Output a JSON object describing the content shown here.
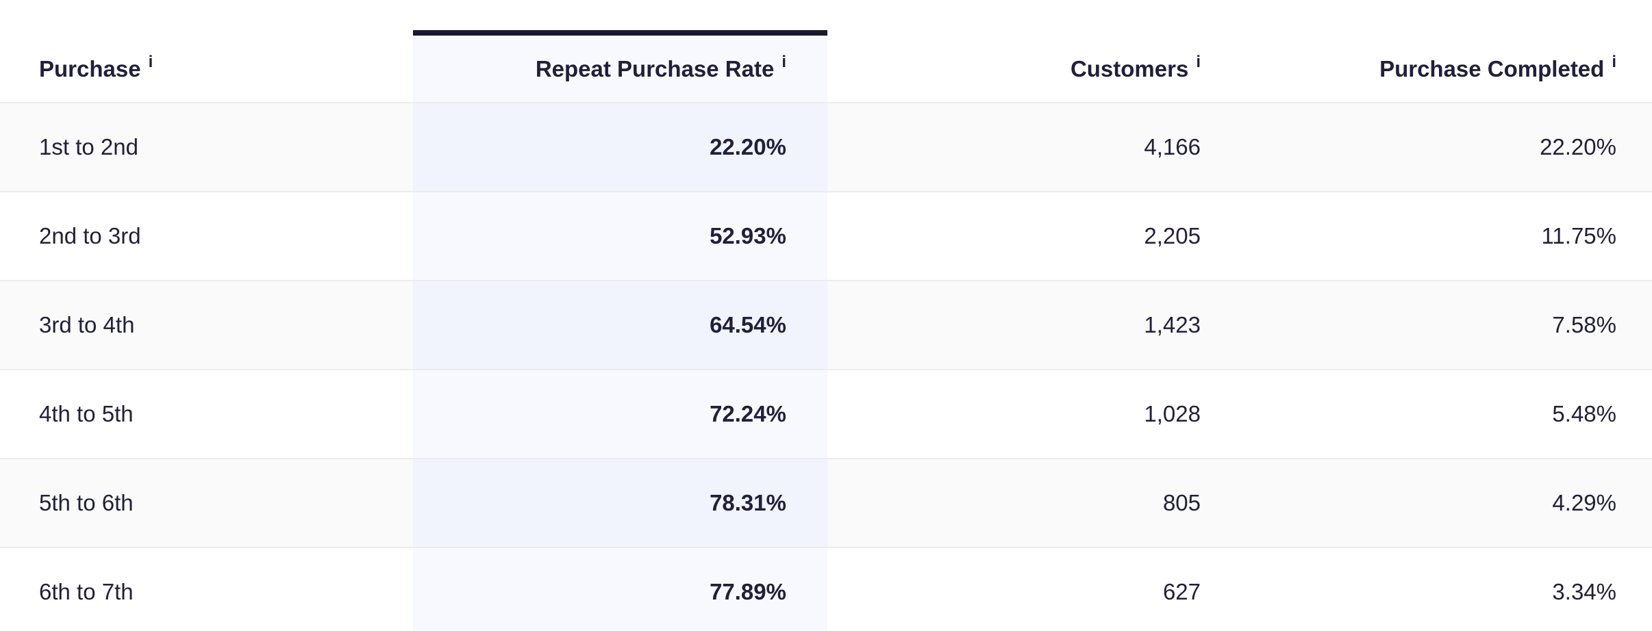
{
  "table": {
    "columns": [
      {
        "label": "Purchase",
        "info_icon": "i",
        "align": "left"
      },
      {
        "label": "Repeat Purchase Rate",
        "info_icon": "i",
        "align": "right",
        "highlighted": true
      },
      {
        "label": "Customers",
        "info_icon": "i",
        "align": "right"
      },
      {
        "label": "Purchase Completed",
        "info_icon": "i",
        "align": "right"
      }
    ],
    "rows": [
      {
        "purchase": "1st to 2nd",
        "repeat_purchase_rate": "22.20%",
        "customers": "4,166",
        "purchase_completed": "22.20%"
      },
      {
        "purchase": "2nd to 3rd",
        "repeat_purchase_rate": "52.93%",
        "customers": "2,205",
        "purchase_completed": "11.75%"
      },
      {
        "purchase": "3rd to 4th",
        "repeat_purchase_rate": "64.54%",
        "customers": "1,423",
        "purchase_completed": "7.58%"
      },
      {
        "purchase": "4th to 5th",
        "repeat_purchase_rate": "72.24%",
        "customers": "1,028",
        "purchase_completed": "5.48%"
      },
      {
        "purchase": "5th to 6th",
        "repeat_purchase_rate": "78.31%",
        "customers": "805",
        "purchase_completed": "4.29%"
      },
      {
        "purchase": "6th to 7th",
        "repeat_purchase_rate": "77.89%",
        "customers": "627",
        "purchase_completed": "3.34%"
      }
    ]
  },
  "colors": {
    "text": "#211f3a",
    "highlight_column_top_border": "#1a192d",
    "highlight_column_bg_on_white_row": "#f8f9fe",
    "highlight_column_bg_on_gray_row": "#f1f3fd",
    "alt_row_bg": "#fafafa",
    "row_separator": "#ececef",
    "page_bg": "#ffffff"
  }
}
